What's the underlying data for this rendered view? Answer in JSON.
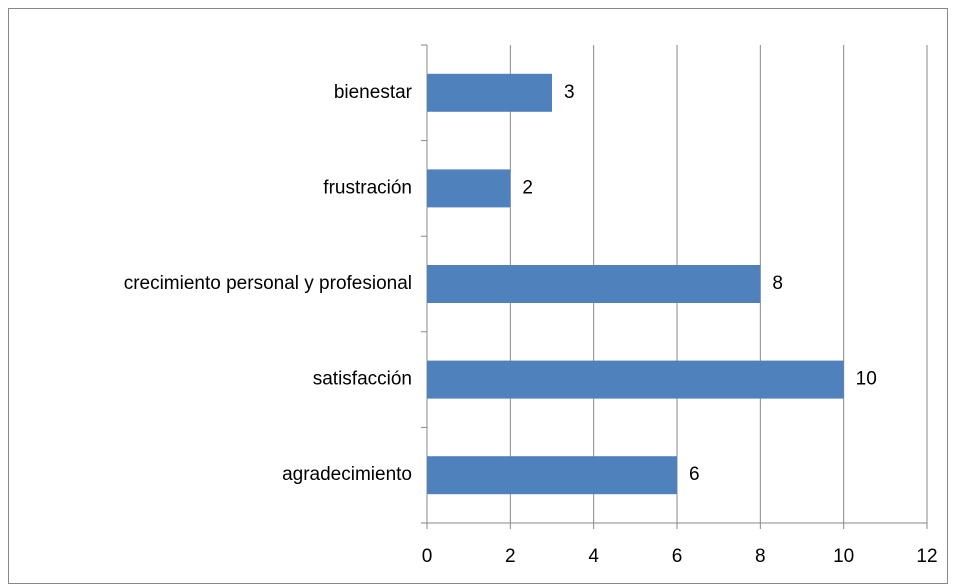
{
  "chart_data": {
    "type": "barh",
    "categories": [
      "bienestar",
      "frustración",
      "crecimiento personal y profesional",
      "satisfacción",
      "agradecimiento"
    ],
    "values": [
      3,
      2,
      8,
      10,
      6
    ],
    "color": "#4f81bd",
    "xlim": [
      0,
      12
    ],
    "xticks": [
      0,
      2,
      4,
      6,
      8,
      10,
      12
    ],
    "grid": true
  }
}
